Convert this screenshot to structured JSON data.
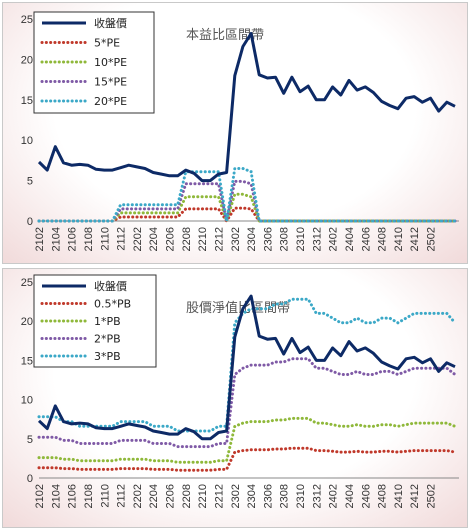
{
  "chart_data": [
    {
      "type": "line",
      "title": "本益比區間帶",
      "ylim": [
        0,
        25
      ],
      "yticks": [
        0,
        5,
        10,
        15,
        20,
        25
      ],
      "x_tick_labels": [
        "2102",
        "2104",
        "2106",
        "2108",
        "2110",
        "2112",
        "2202",
        "2204",
        "2206",
        "2208",
        "2210",
        "2212",
        "2302",
        "2304",
        "2306",
        "2308",
        "2310",
        "2312",
        "2402",
        "2404",
        "2406",
        "2408",
        "2410",
        "2412",
        "2502"
      ],
      "legend_position": "top-left",
      "grid": false,
      "series": [
        {
          "name": "收盤價",
          "color": "#0d2a66",
          "style": "solid",
          "values": [
            7.3,
            6.3,
            9.2,
            7.2,
            6.9,
            7.0,
            6.9,
            6.4,
            6.3,
            6.3,
            6.6,
            6.9,
            6.7,
            6.5,
            6.0,
            5.8,
            5.6,
            5.6,
            6.3,
            5.9,
            5.0,
            5.0,
            5.8,
            6.0,
            18.0,
            21.6,
            23.2,
            18.1,
            17.7,
            17.8,
            15.8,
            17.8,
            16.0,
            16.7,
            15.0,
            15.0,
            16.6,
            15.6,
            17.4,
            16.2,
            16.6,
            15.9,
            14.8,
            14.3,
            13.9,
            15.2,
            15.4,
            14.7,
            15.2,
            13.6,
            14.7,
            14.2
          ]
        },
        {
          "name": "5*PE",
          "color": "#c0392b",
          "style": "dotted",
          "values": [
            0,
            0,
            0,
            0,
            0,
            0,
            0,
            0,
            0,
            0,
            0.5,
            0.5,
            0.5,
            0.5,
            0.5,
            0.5,
            0.5,
            0.5,
            1.5,
            1.5,
            1.5,
            1.5,
            1.5,
            0,
            1.6,
            1.6,
            1.5,
            0,
            0,
            0,
            0,
            0,
            0,
            0,
            0,
            0,
            0,
            0,
            0,
            0,
            0,
            0,
            0,
            0,
            0,
            0,
            0,
            0,
            0,
            0,
            0,
            0
          ]
        },
        {
          "name": "10*PE",
          "color": "#8fb83a",
          "style": "dotted",
          "values": [
            0,
            0,
            0,
            0,
            0,
            0,
            0,
            0,
            0,
            0,
            1.0,
            1.0,
            1.0,
            1.0,
            1.0,
            1.0,
            1.0,
            1.0,
            3.0,
            3.0,
            3.0,
            3.0,
            3.0,
            0,
            3.3,
            3.3,
            3.0,
            0,
            0,
            0,
            0,
            0,
            0,
            0,
            0,
            0,
            0,
            0,
            0,
            0,
            0,
            0,
            0,
            0,
            0,
            0,
            0,
            0,
            0,
            0,
            0,
            0
          ]
        },
        {
          "name": "15*PE",
          "color": "#7f5aa6",
          "style": "dotted",
          "values": [
            0,
            0,
            0,
            0,
            0,
            0,
            0,
            0,
            0,
            0,
            1.5,
            1.5,
            1.5,
            1.5,
            1.5,
            1.5,
            1.5,
            1.5,
            4.6,
            4.6,
            4.6,
            4.6,
            4.6,
            0,
            4.9,
            4.9,
            4.6,
            0,
            0,
            0,
            0,
            0,
            0,
            0,
            0,
            0,
            0,
            0,
            0,
            0,
            0,
            0,
            0,
            0,
            0,
            0,
            0,
            0,
            0,
            0,
            0,
            0
          ]
        },
        {
          "name": "20*PE",
          "color": "#3ba8c7",
          "style": "dotted",
          "values": [
            0,
            0,
            0,
            0,
            0,
            0,
            0,
            0,
            0,
            0,
            2.0,
            2.0,
            2.0,
            2.0,
            2.0,
            2.0,
            2.0,
            2.0,
            6.1,
            6.1,
            6.1,
            6.1,
            6.1,
            0,
            6.5,
            6.5,
            6.1,
            0,
            0,
            0,
            0,
            0,
            0,
            0,
            0,
            0,
            0,
            0,
            0,
            0,
            0,
            0,
            0,
            0,
            0,
            0,
            0,
            0,
            0,
            0,
            0,
            0
          ]
        }
      ]
    },
    {
      "type": "line",
      "title": "股價淨值比區間帶",
      "ylim": [
        0,
        25
      ],
      "yticks": [
        0,
        5,
        10,
        15,
        20,
        25
      ],
      "x_tick_labels": [
        "2102",
        "2104",
        "2106",
        "2108",
        "2110",
        "2112",
        "2202",
        "2204",
        "2206",
        "2208",
        "2210",
        "2212",
        "2302",
        "2304",
        "2306",
        "2308",
        "2310",
        "2312",
        "2402",
        "2404",
        "2406",
        "2408",
        "2410",
        "2412",
        "2502"
      ],
      "legend_position": "top-left",
      "grid": false,
      "series": [
        {
          "name": "收盤價",
          "color": "#0d2a66",
          "style": "solid",
          "values": [
            7.3,
            6.3,
            9.2,
            7.2,
            6.9,
            7.0,
            6.9,
            6.4,
            6.3,
            6.3,
            6.6,
            6.9,
            6.7,
            6.5,
            6.0,
            5.8,
            5.6,
            5.6,
            6.3,
            5.9,
            5.0,
            5.0,
            5.8,
            6.0,
            18.0,
            21.6,
            23.2,
            18.1,
            17.7,
            17.8,
            15.8,
            17.8,
            16.0,
            16.7,
            15.0,
            15.0,
            16.6,
            15.6,
            17.4,
            16.2,
            16.6,
            15.9,
            14.8,
            14.3,
            13.9,
            15.2,
            15.4,
            14.7,
            15.2,
            13.6,
            14.7,
            14.2
          ]
        },
        {
          "name": "0.5*PB",
          "color": "#c0392b",
          "style": "dotted",
          "values": [
            1.3,
            1.3,
            1.3,
            1.2,
            1.2,
            1.1,
            1.1,
            1.1,
            1.1,
            1.1,
            1.2,
            1.2,
            1.2,
            1.2,
            1.1,
            1.1,
            1.1,
            1.0,
            1.0,
            1.0,
            1.0,
            1.0,
            1.1,
            1.1,
            3.3,
            3.5,
            3.6,
            3.6,
            3.6,
            3.7,
            3.7,
            3.8,
            3.8,
            3.8,
            3.5,
            3.5,
            3.4,
            3.3,
            3.3,
            3.4,
            3.3,
            3.3,
            3.4,
            3.4,
            3.3,
            3.4,
            3.5,
            3.5,
            3.5,
            3.5,
            3.5,
            3.3
          ]
        },
        {
          "name": "1*PB",
          "color": "#8fb83a",
          "style": "dotted",
          "values": [
            2.6,
            2.6,
            2.6,
            2.4,
            2.4,
            2.2,
            2.2,
            2.2,
            2.2,
            2.2,
            2.4,
            2.4,
            2.4,
            2.4,
            2.2,
            2.2,
            2.2,
            2.0,
            2.0,
            2.0,
            2.0,
            2.0,
            2.2,
            2.2,
            6.6,
            7.0,
            7.2,
            7.2,
            7.2,
            7.4,
            7.4,
            7.6,
            7.6,
            7.6,
            7.0,
            7.0,
            6.8,
            6.6,
            6.6,
            6.8,
            6.6,
            6.6,
            6.8,
            6.8,
            6.6,
            6.8,
            7.0,
            7.0,
            7.0,
            7.0,
            7.0,
            6.6
          ]
        },
        {
          "name": "2*PB",
          "color": "#7f5aa6",
          "style": "dotted",
          "values": [
            5.2,
            5.2,
            5.2,
            4.8,
            4.8,
            4.4,
            4.4,
            4.4,
            4.4,
            4.4,
            4.8,
            4.8,
            4.8,
            4.8,
            4.4,
            4.4,
            4.4,
            4.0,
            4.0,
            4.0,
            4.0,
            4.0,
            4.4,
            4.4,
            13.2,
            14.0,
            14.4,
            14.4,
            14.4,
            14.8,
            14.8,
            15.2,
            15.2,
            15.2,
            14.0,
            14.0,
            13.6,
            13.2,
            13.2,
            13.6,
            13.2,
            13.2,
            13.6,
            13.6,
            13.2,
            13.6,
            14.0,
            14.0,
            14.0,
            14.0,
            14.0,
            13.2
          ]
        },
        {
          "name": "3*PB",
          "color": "#3ba8c7",
          "style": "dotted",
          "values": [
            7.8,
            7.8,
            7.8,
            7.2,
            7.2,
            6.6,
            6.6,
            6.6,
            6.6,
            6.6,
            7.2,
            7.2,
            7.2,
            7.2,
            6.6,
            6.6,
            6.6,
            6.0,
            6.0,
            6.0,
            6.0,
            6.0,
            6.6,
            6.6,
            19.8,
            21.0,
            21.6,
            21.6,
            21.6,
            22.2,
            22.2,
            22.8,
            22.8,
            22.8,
            21.0,
            21.0,
            20.4,
            19.8,
            19.8,
            20.4,
            19.8,
            19.8,
            20.4,
            20.4,
            19.8,
            20.4,
            21.0,
            21.0,
            21.0,
            21.0,
            21.0,
            19.8
          ]
        }
      ]
    }
  ]
}
